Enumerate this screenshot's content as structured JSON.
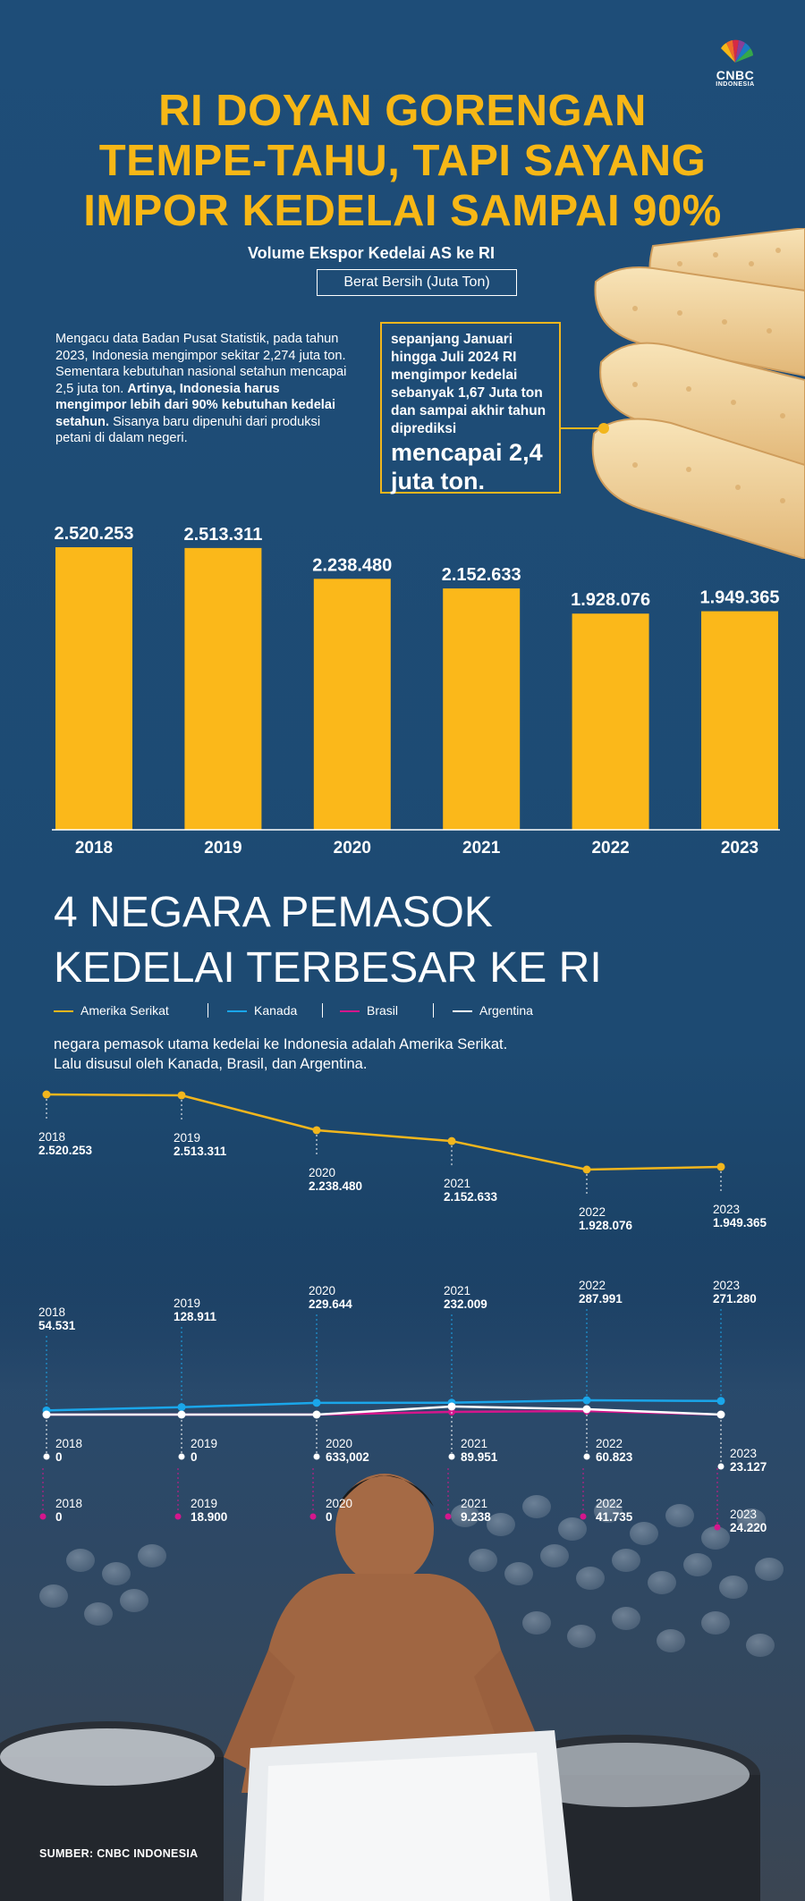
{
  "logo": {
    "text": "CNBC",
    "sub": "INDONESIA"
  },
  "title_lines": [
    "RI DOYAN GORENGAN",
    "TEMPE-TAHU, TAPI SAYANG",
    "IMPOR KEDELAI SAMPAI 90%"
  ],
  "subtitle": "Volume Ekspor Kedelai AS ke RI",
  "unit": "Berat Bersih (Juta Ton)",
  "intro": {
    "p1": "Mengacu data Badan Pusat Statistik, pada tahun 2023, Indonesia mengimpor sekitar 2,274 juta ton. Sementara kebutuhan nasional setahun mencapai 2,5 juta ton. ",
    "bold": "Artinya, Indonesia harus mengimpor lebih dari 90% kebutuhan kedelai setahun.",
    "p2": " Sisanya baru dipenuhi dari produksi petani di dalam negeri."
  },
  "callout": {
    "text": "sepanjang Januari hingga Juli 2024 RI mengimpor kedelai sebanyak 1,67 Juta ton dan sampai akhir tahun diprediksi",
    "big": "mencapai 2,4 juta ton."
  },
  "section2": {
    "title_line1": "4 NEGARA PEMASOK",
    "title_line2": "KEDELAI TERBESAR KE RI",
    "desc": "negara pemasok utama kedelai ke Indonesia adalah Amerika Serikat. Lalu disusul oleh Kanada, Brasil, dan Argentina."
  },
  "legend": [
    {
      "name": "Amerika Serikat",
      "color": "#f2b61d"
    },
    {
      "name": "Kanada",
      "color": "#1aa6ea"
    },
    {
      "name": "Brasil",
      "color": "#d4168c"
    },
    {
      "name": "Argentina",
      "color": "#ffffff"
    }
  ],
  "source": "SUMBER: CNBC INDONESIA",
  "chart_data": [
    {
      "type": "bar",
      "title": "Volume Ekspor Kedelai AS ke RI",
      "ylabel": "Berat Bersih (Juta Ton)",
      "categories": [
        "2018",
        "2019",
        "2020",
        "2021",
        "2022",
        "2023"
      ],
      "values": [
        2520253,
        2513311,
        2238480,
        2152633,
        1928076,
        1949365
      ],
      "value_labels": [
        "2.520.253",
        "2.513.311",
        "2.238.480",
        "2.152.633",
        "1.928.076",
        "1.949.365"
      ],
      "ylim": [
        0,
        2520253
      ],
      "color": "#fbb81a"
    },
    {
      "type": "line",
      "x": [
        "2018",
        "2019",
        "2020",
        "2021",
        "2022",
        "2023"
      ],
      "series": [
        {
          "name": "Amerika Serikat",
          "color": "#f2b61d",
          "values": [
            2520253,
            2513311,
            2238480,
            2152633,
            1928076,
            1949365
          ],
          "labels": [
            "2.520.253",
            "2.513.311",
            "2.238.480",
            "2.152.633",
            "1.928.076",
            "1.949.365"
          ]
        },
        {
          "name": "Kanada",
          "color": "#1aa6ea",
          "values": [
            54531,
            128911,
            229644,
            232009,
            287991,
            271280
          ],
          "labels": [
            "54.531",
            "128.911",
            "229.644",
            "232.009",
            "287.991",
            "271.280"
          ]
        },
        {
          "name": "Argentina",
          "color": "#ffffff",
          "values": [
            0,
            0,
            633002,
            89951,
            60823,
            23127
          ],
          "labels": [
            "0",
            "0",
            "633,002",
            "89.951",
            "60.823",
            "23.127"
          ]
        },
        {
          "name": "Brasil",
          "color": "#d4168c",
          "values": [
            0,
            18900,
            0,
            9238,
            41735,
            24220
          ],
          "labels": [
            "0",
            "18.900",
            "0",
            "9.238",
            "41.735",
            "24.220"
          ]
        }
      ]
    }
  ]
}
